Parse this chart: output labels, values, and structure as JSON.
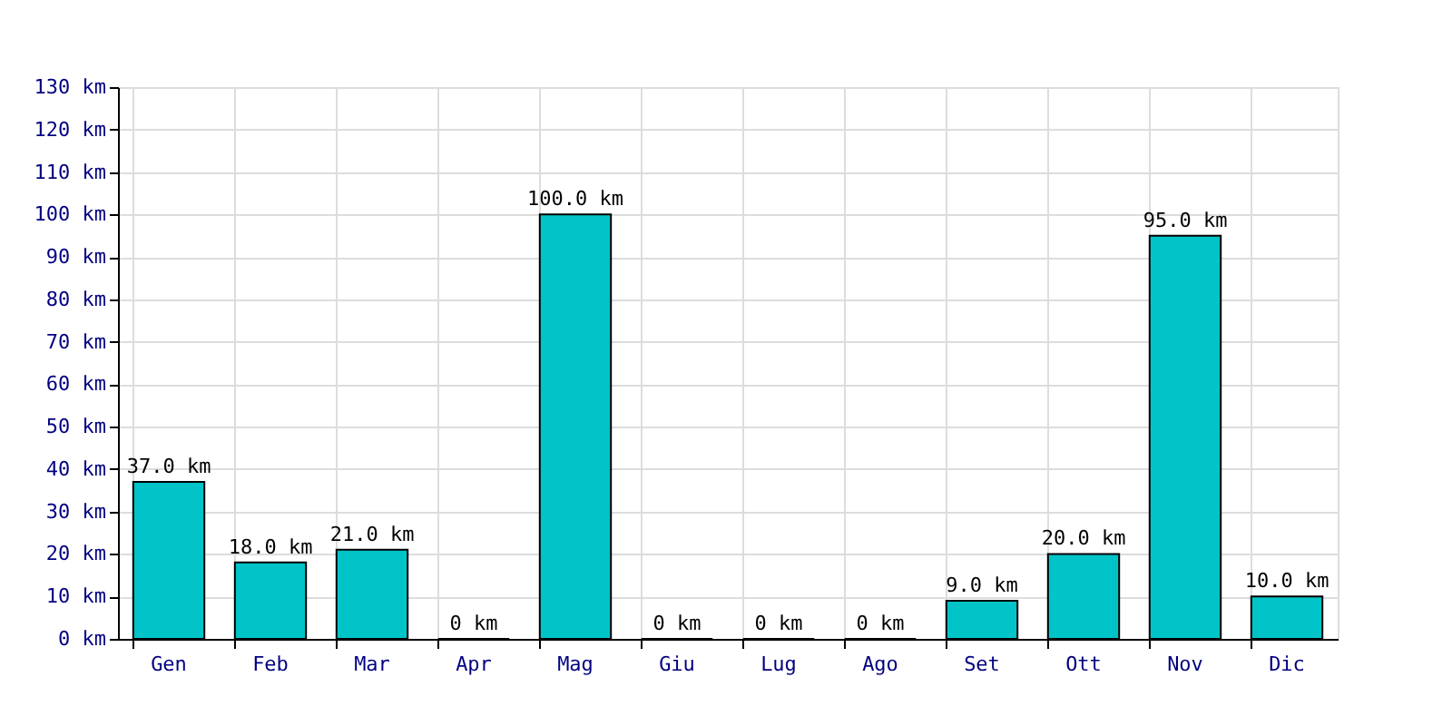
{
  "chart_data": {
    "type": "bar",
    "categories": [
      "Gen",
      "Feb",
      "Mar",
      "Apr",
      "Mag",
      "Giu",
      "Lug",
      "Ago",
      "Set",
      "Ott",
      "Nov",
      "Dic"
    ],
    "values": [
      37,
      18,
      21,
      0,
      100,
      0,
      0,
      0,
      9,
      20,
      95,
      10
    ],
    "value_labels": [
      "37.0 km",
      "18.0 km",
      "21.0 km",
      "0 km",
      "100.0 km",
      "0 km",
      "0 km",
      "0 km",
      "9.0 km",
      "20.0 km",
      "95.0 km",
      "10.0 km"
    ],
    "color": "#00c4c8",
    "ylim": [
      0,
      130
    ],
    "yticks": [
      {
        "value": 0,
        "label": "0 km"
      },
      {
        "value": 10,
        "label": "10 km"
      },
      {
        "value": 20,
        "label": "20 km"
      },
      {
        "value": 30,
        "label": "30 km"
      },
      {
        "value": 40,
        "label": "40 km"
      },
      {
        "value": 50,
        "label": "50 km"
      },
      {
        "value": 60,
        "label": "60 km"
      },
      {
        "value": 70,
        "label": "70 km"
      },
      {
        "value": 80,
        "label": "80 km"
      },
      {
        "value": 90,
        "label": "90 km"
      },
      {
        "value": 100,
        "label": "100 km"
      },
      {
        "value": 110,
        "label": "110 km"
      },
      {
        "value": 120,
        "label": "120 km"
      },
      {
        "value": 130,
        "label": "130 km"
      }
    ],
    "grid": true
  }
}
